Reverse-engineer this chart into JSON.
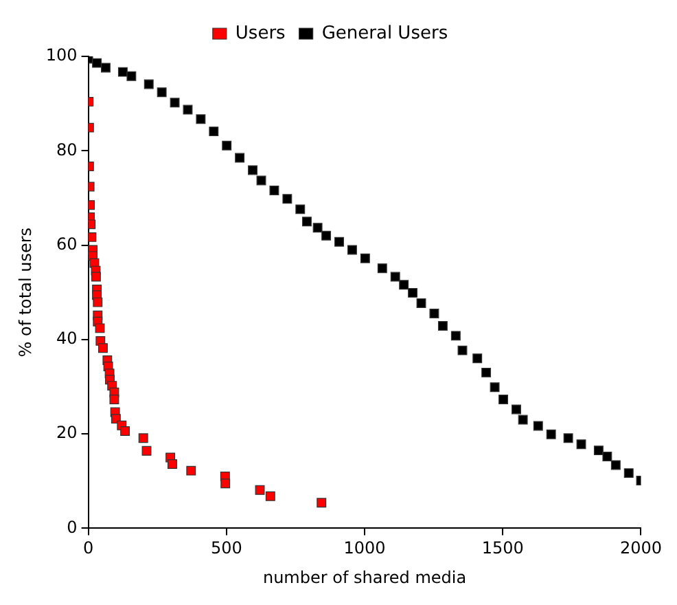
{
  "chart_data": {
    "type": "scatter",
    "xlabel": "number of shared media",
    "ylabel": "% of total users",
    "xlim": [
      0,
      2000
    ],
    "xticks": [
      0,
      500,
      1000,
      1500,
      2000
    ],
    "ylim": [
      0,
      100
    ],
    "yticks": [
      0,
      20,
      40,
      60,
      80,
      100
    ],
    "grid": false,
    "legend": "top",
    "marker": "square",
    "series": [
      {
        "name": "Users",
        "color": "#ff0000",
        "x": [
          1.6,
          3,
          3,
          5,
          6,
          6,
          9,
          12,
          16,
          16,
          22,
          27,
          28,
          31,
          31,
          34,
          34,
          34,
          42,
          44,
          53,
          69,
          72,
          77,
          78,
          86,
          94,
          94,
          97,
          100,
          121,
          133,
          199,
          211,
          297,
          304,
          372,
          495,
          496,
          621,
          659,
          844
        ],
        "values": [
          90.4,
          84.9,
          76.7,
          72.4,
          68.5,
          65.9,
          64.4,
          61.7,
          59,
          57.7,
          56.2,
          54.6,
          53.3,
          50.6,
          49.4,
          47.9,
          45.1,
          43.8,
          42.4,
          39.7,
          38.2,
          35.6,
          34.3,
          32.8,
          31.5,
          30.2,
          28.8,
          27.3,
          24.6,
          23.2,
          21.8,
          20.6,
          19.1,
          16.4,
          15,
          13.6,
          12.2,
          11,
          9.5,
          8.1,
          6.8,
          5.4
        ]
      },
      {
        "name": "General Users",
        "color": "#000000",
        "x": [
          0,
          31,
          63,
          125,
          156,
          219,
          266,
          313,
          360,
          407,
          454,
          501,
          548,
          595,
          626,
          673,
          720,
          767,
          791,
          830,
          861,
          908,
          955,
          1002,
          1064,
          1111,
          1142,
          1174,
          1205,
          1252,
          1283,
          1330,
          1354,
          1408,
          1440,
          1471,
          1502,
          1549,
          1573,
          1628,
          1675,
          1737,
          1784,
          1847,
          1878,
          1909,
          1956,
          2000
        ],
        "values": [
          99.5,
          98.6,
          97.6,
          96.7,
          95.8,
          94.1,
          92.4,
          90.2,
          88.7,
          86.7,
          84.1,
          81.1,
          78.5,
          75.9,
          73.7,
          71.6,
          69.8,
          67.6,
          65,
          63.7,
          62,
          60.7,
          59,
          57.2,
          55.1,
          53.3,
          51.6,
          49.9,
          47.7,
          45.5,
          42.9,
          40.8,
          37.7,
          36,
          33,
          29.9,
          27.3,
          25.2,
          23,
          21.7,
          19.9,
          19.1,
          17.8,
          16.5,
          15.2,
          13.4,
          11.7,
          10.1
        ]
      }
    ]
  }
}
